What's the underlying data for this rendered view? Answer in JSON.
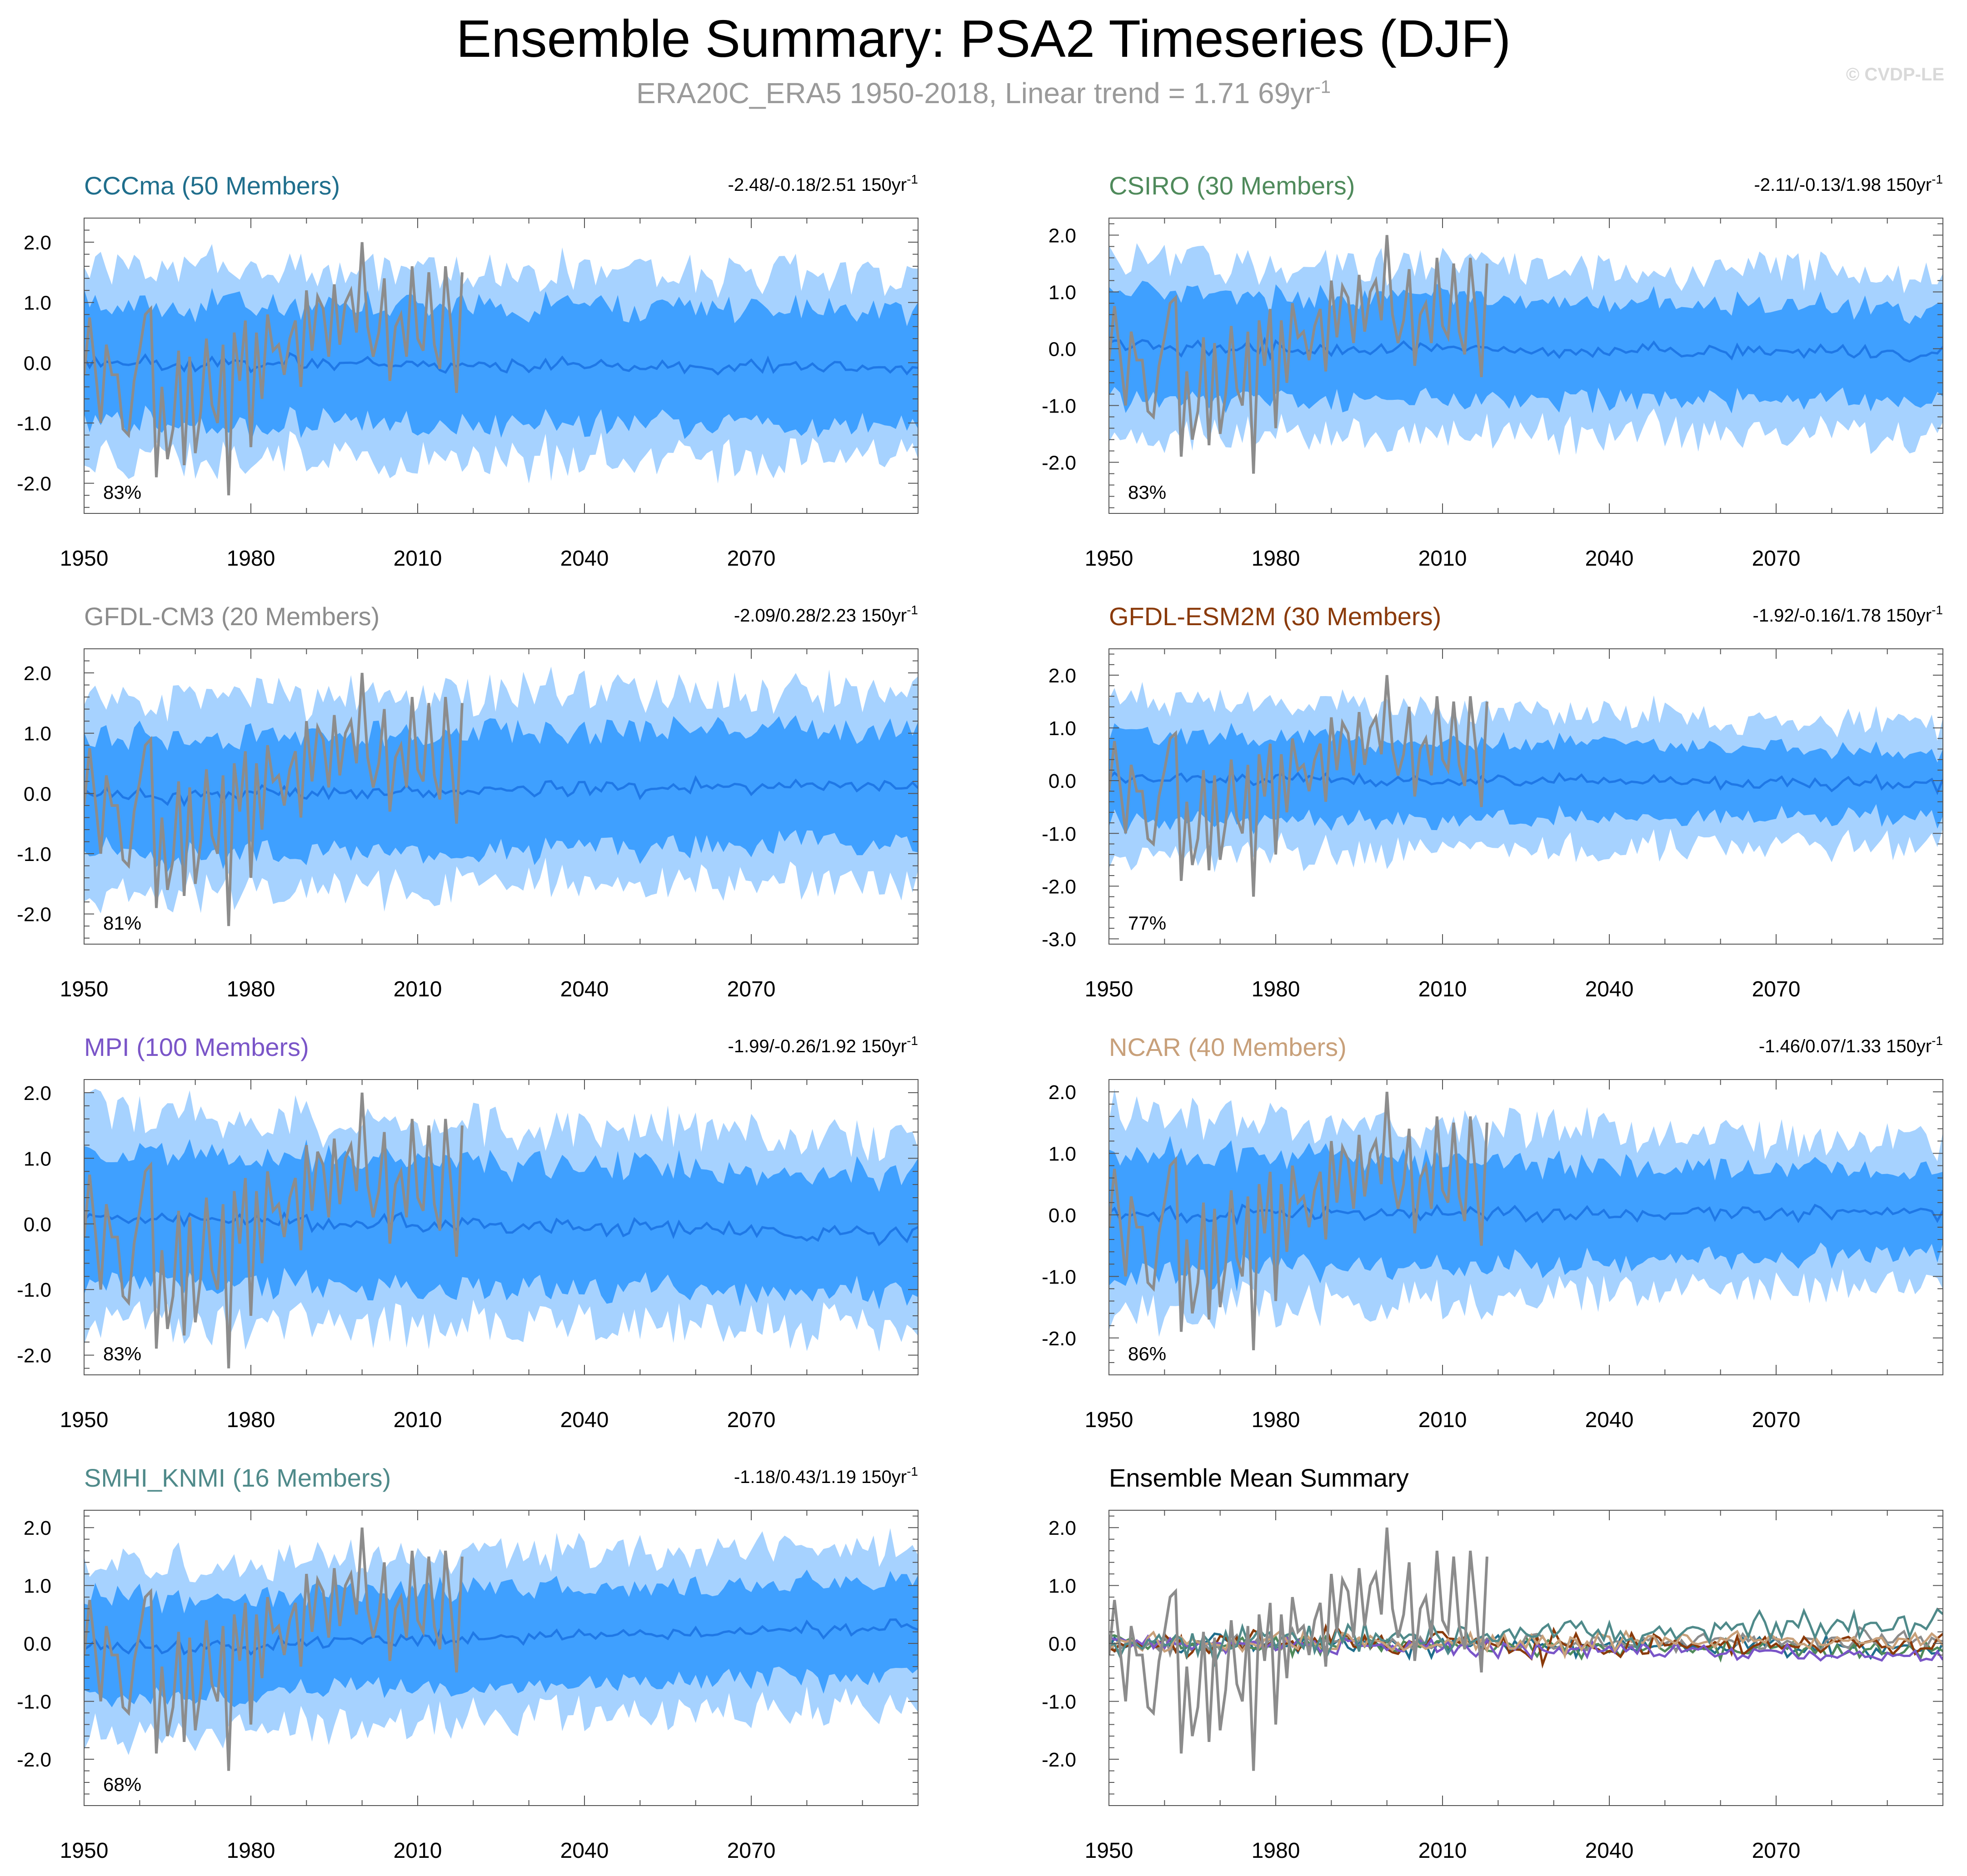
{
  "header": {
    "title": "Ensemble Summary: PSA2 Timeseries (DJF)",
    "subtitle_main": "ERA20C_ERA5 1950-2018, Linear trend = 1.71 69yr",
    "subtitle_exp": "-1",
    "credit": "© CVDP-LE"
  },
  "colors": {
    "band_outer": "#a6d2ff",
    "band_inner": "#3fa0ff",
    "ens_mean": "#1f78e6",
    "obs": "#8c8c8c",
    "axis": "#555555",
    "tick_label": "#000000"
  },
  "chart_data": [
    {
      "type": "area",
      "id": "cccma",
      "title": "CCCma (50 Members)",
      "title_color": "#1f6e8c",
      "trend_main": "-2.48/-0.18/2.51 150yr",
      "trend_exp": "-1",
      "percent": "83%",
      "ylim": [
        -2.5,
        2.4
      ],
      "yticks": [
        2.0,
        1.0,
        0.0,
        -1.0,
        -2.0
      ],
      "ytick_labels": [
        "2.0",
        "1.0",
        "0.0",
        "-1.0",
        "-2.0"
      ],
      "xlim": [
        1950,
        2100
      ],
      "xticks": [
        1950,
        1980,
        2010,
        2040,
        2070
      ],
      "xtick_labels": [
        "1950",
        "1980",
        "2010",
        "2040",
        "2070"
      ],
      "spread_early": [
        1.0,
        1.55
      ],
      "spread_late": [
        0.95,
        1.45
      ],
      "mean_offset": 0.0,
      "mean_trend": -0.08
    },
    {
      "type": "area",
      "id": "csiro",
      "title": "CSIRO (30 Members)",
      "title_color": "#4f8a5b",
      "trend_main": "-2.11/-0.13/1.98 150yr",
      "trend_exp": "-1",
      "percent": "83%",
      "ylim": [
        -2.9,
        2.3
      ],
      "yticks": [
        2.0,
        1.0,
        0.0,
        -1.0,
        -2.0
      ],
      "ytick_labels": [
        "2.0",
        "1.0",
        "0.0",
        "-1.0",
        "-2.0"
      ],
      "xlim": [
        1950,
        2100
      ],
      "xticks": [
        1950,
        1980,
        2010,
        2040,
        2070
      ],
      "xtick_labels": [
        "1950",
        "1980",
        "2010",
        "2040",
        "2070"
      ],
      "spread_early": [
        0.95,
        1.5
      ],
      "spread_late": [
        0.8,
        1.35
      ],
      "mean_offset": 0.05,
      "mean_trend": -0.15
    },
    {
      "type": "area",
      "id": "gfdl-cm3",
      "title": "GFDL-CM3 (20 Members)",
      "title_color": "#8c8c8c",
      "trend_main": "-2.09/0.28/2.23 150yr",
      "trend_exp": "-1",
      "percent": "81%",
      "ylim": [
        -2.5,
        2.4
      ],
      "yticks": [
        2.0,
        1.0,
        0.0,
        -1.0,
        -2.0
      ],
      "ytick_labels": [
        "2.0",
        "1.0",
        "0.0",
        "-1.0",
        "-2.0"
      ],
      "xlim": [
        1950,
        2100
      ],
      "xticks": [
        1950,
        1980,
        2010,
        2040,
        2070
      ],
      "xtick_labels": [
        "1950",
        "1980",
        "2010",
        "2040",
        "2070"
      ],
      "spread_early": [
        1.0,
        1.6
      ],
      "spread_late": [
        0.95,
        1.5
      ],
      "mean_offset": -0.05,
      "mean_trend": 0.2
    },
    {
      "type": "area",
      "id": "gfdl-esm2m",
      "title": "GFDL-ESM2M (30 Members)",
      "title_color": "#8a3a0a",
      "trend_main": "-1.92/-0.16/1.78 150yr",
      "trend_exp": "-1",
      "percent": "77%",
      "ylim": [
        -3.1,
        2.5
      ],
      "yticks": [
        2.0,
        1.0,
        0.0,
        -1.0,
        -2.0,
        -3.0
      ],
      "ytick_labels": [
        "2.0",
        "1.0",
        "0.0",
        "-1.0",
        "-2.0",
        "-3.0"
      ],
      "xlim": [
        1950,
        2100
      ],
      "xticks": [
        1950,
        1980,
        2010,
        2040,
        2070
      ],
      "xtick_labels": [
        "1950",
        "1980",
        "2010",
        "2040",
        "2070"
      ],
      "spread_early": [
        0.85,
        1.45
      ],
      "spread_late": [
        0.6,
        1.1
      ],
      "mean_offset": 0.05,
      "mean_trend": -0.1
    },
    {
      "type": "area",
      "id": "mpi",
      "title": "MPI (100 Members)",
      "title_color": "#7a55c8",
      "trend_main": "-1.99/-0.26/1.92 150yr",
      "trend_exp": "-1",
      "percent": "83%",
      "ylim": [
        -2.3,
        2.2
      ],
      "yticks": [
        2.0,
        1.0,
        0.0,
        -1.0,
        -2.0
      ],
      "ytick_labels": [
        "2.0",
        "1.0",
        "0.0",
        "-1.0",
        "-2.0"
      ],
      "xlim": [
        1950,
        2100
      ],
      "xticks": [
        1950,
        1980,
        2010,
        2040,
        2070
      ],
      "xtick_labels": [
        "1950",
        "1980",
        "2010",
        "2040",
        "2070"
      ],
      "spread_early": [
        1.0,
        1.6
      ],
      "spread_late": [
        0.9,
        1.35
      ],
      "mean_offset": 0.1,
      "mean_trend": -0.25
    },
    {
      "type": "area",
      "id": "ncar",
      "title": "NCAR (40 Members)",
      "title_color": "#c8a07a",
      "trend_main": "-1.46/0.07/1.33 150yr",
      "trend_exp": "-1",
      "percent": "86%",
      "ylim": [
        -2.6,
        2.2
      ],
      "yticks": [
        2.0,
        1.0,
        0.0,
        -1.0,
        -2.0
      ],
      "ytick_labels": [
        "2.0",
        "1.0",
        "0.0",
        "-1.0",
        "-2.0"
      ],
      "xlim": [
        1950,
        2100
      ],
      "xticks": [
        1950,
        1980,
        2010,
        2040,
        2070
      ],
      "xtick_labels": [
        "1950",
        "1980",
        "2010",
        "2040",
        "2070"
      ],
      "spread_early": [
        1.0,
        1.6
      ],
      "spread_late": [
        0.65,
        1.1
      ],
      "mean_offset": 0.0,
      "mean_trend": 0.05
    },
    {
      "type": "area",
      "id": "smhi-knmi",
      "title": "SMHI_KNMI (16 Members)",
      "title_color": "#4f8a8a",
      "trend_main": "-1.18/0.43/1.19 150yr",
      "trend_exp": "-1",
      "percent": "68%",
      "ylim": [
        -2.8,
        2.3
      ],
      "yticks": [
        2.0,
        1.0,
        0.0,
        -1.0,
        -2.0
      ],
      "ytick_labels": [
        "2.0",
        "1.0",
        "0.0",
        "-1.0",
        "-2.0"
      ],
      "xlim": [
        1950,
        2100
      ],
      "xticks": [
        1950,
        1980,
        2010,
        2040,
        2070
      ],
      "xtick_labels": [
        "1950",
        "1980",
        "2010",
        "2040",
        "2070"
      ],
      "spread_early": [
        0.85,
        1.45
      ],
      "spread_late": [
        0.8,
        1.3
      ],
      "mean_offset": -0.1,
      "mean_trend": 0.4
    },
    {
      "type": "line",
      "id": "ensemble-mean-summary",
      "title": "Ensemble Mean Summary",
      "title_color": "#000000",
      "ylim": [
        -2.8,
        2.3
      ],
      "yticks": [
        2.0,
        1.0,
        0.0,
        -1.0,
        -2.0
      ],
      "ytick_labels": [
        "2.0",
        "1.0",
        "0.0",
        "-1.0",
        "-2.0"
      ],
      "xlim": [
        1950,
        2100
      ],
      "xticks": [
        1950,
        1980,
        2010,
        2040,
        2070
      ],
      "xtick_labels": [
        "1950",
        "1980",
        "2010",
        "2040",
        "2070"
      ],
      "series": [
        {
          "name": "CCCma",
          "color": "#1f6e8c",
          "amp": 0.12,
          "trend": -0.08
        },
        {
          "name": "CSIRO",
          "color": "#4f8a5b",
          "amp": 0.13,
          "trend": -0.1
        },
        {
          "name": "GFDL-CM3",
          "color": "#8c8c8c",
          "amp": 0.13,
          "trend": 0.05
        },
        {
          "name": "GFDL-ESM2M",
          "color": "#8a3a0a",
          "amp": 0.16,
          "trend": -0.05
        },
        {
          "name": "MPI",
          "color": "#7a55c8",
          "amp": 0.1,
          "trend": -0.2
        },
        {
          "name": "NCAR",
          "color": "#c8a07a",
          "amp": 0.13,
          "trend": 0.05
        },
        {
          "name": "SMHI_KNMI",
          "color": "#4f8a8a",
          "amp": 0.2,
          "trend": 0.35
        }
      ]
    }
  ],
  "observations": {
    "name": "ERA20C_ERA5",
    "years": [
      1950,
      1951,
      1952,
      1953,
      1954,
      1955,
      1956,
      1957,
      1958,
      1959,
      1960,
      1961,
      1962,
      1963,
      1964,
      1965,
      1966,
      1967,
      1968,
      1969,
      1970,
      1971,
      1972,
      1973,
      1974,
      1975,
      1976,
      1977,
      1978,
      1979,
      1980,
      1981,
      1982,
      1983,
      1984,
      1985,
      1986,
      1987,
      1988,
      1989,
      1990,
      1991,
      1992,
      1993,
      1994,
      1995,
      1996,
      1997,
      1998,
      1999,
      2000,
      2001,
      2002,
      2003,
      2004,
      2005,
      2006,
      2007,
      2008,
      2009,
      2010,
      2011,
      2012,
      2013,
      2014,
      2015,
      2016,
      2017,
      2018
    ],
    "values": [
      -0.2,
      0.75,
      -0.1,
      -1.0,
      0.3,
      -0.2,
      -0.2,
      -1.1,
      -1.2,
      -0.3,
      0.2,
      0.8,
      0.9,
      -1.9,
      -0.4,
      -1.6,
      -1.1,
      0.2,
      -1.7,
      0.1,
      -1.5,
      -0.8,
      0.4,
      -0.7,
      -1.0,
      0.3,
      -2.2,
      0.5,
      -0.3,
      0.7,
      -1.4,
      0.5,
      -0.6,
      0.8,
      0.2,
      0.3,
      -0.2,
      0.4,
      0.7,
      -0.4,
      1.2,
      0.2,
      1.1,
      0.9,
      0.1,
      1.3,
      0.3,
      1.0,
      1.2,
      0.5,
      2.0,
      0.6,
      0.1,
      0.5,
      1.4,
      -0.3,
      0.6,
      0.8,
      0.1,
      1.6,
      0.4,
      0.2,
      1.5,
      0.3,
      -0.1,
      1.6,
      0.6,
      -0.5,
      1.5
    ]
  }
}
